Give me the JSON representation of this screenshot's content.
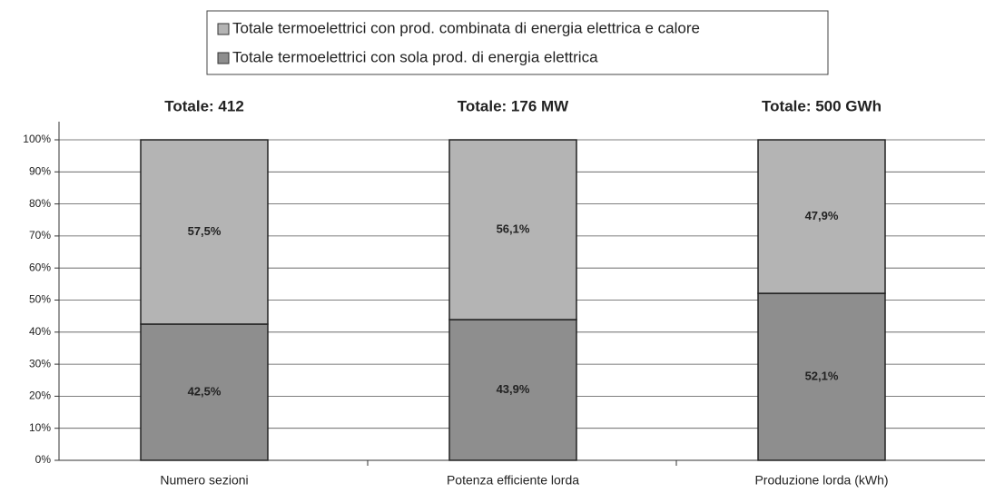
{
  "chart_data": {
    "type": "stacked_bar",
    "legend_position": "top",
    "column_titles": [
      "Totale: 412",
      "Totale: 176 MW",
      "Totale: 500 GWh"
    ],
    "categories": [
      "Numero sezioni",
      "Potenza efficiente lorda",
      "Produzione lorda (kWh)"
    ],
    "series": [
      {
        "name": "Totale termoelettrici con sola prod. di energia elettrica",
        "color": "#8e8e8e",
        "values": [
          42.5,
          43.9,
          52.1
        ],
        "value_labels": [
          "42,5%",
          "43,9%",
          "52,1%"
        ]
      },
      {
        "name": "Totale termoelettrici con prod. combinata di energia elettrica e calore",
        "color": "#b4b4b4",
        "values": [
          57.5,
          56.1,
          47.9
        ],
        "value_labels": [
          "57,5%",
          "56,1%",
          "47,9%"
        ]
      }
    ],
    "ylim": [
      0,
      100
    ],
    "yticks": [
      {
        "value": 0,
        "label": "0%"
      },
      {
        "value": 10,
        "label": "10%"
      },
      {
        "value": 20,
        "label": "20%"
      },
      {
        "value": 30,
        "label": "30%"
      },
      {
        "value": 40,
        "label": "40%"
      },
      {
        "value": 50,
        "label": "50%"
      },
      {
        "value": 60,
        "label": "60%"
      },
      {
        "value": 70,
        "label": "70%"
      },
      {
        "value": 80,
        "label": "80%"
      },
      {
        "value": 90,
        "label": "90%"
      },
      {
        "value": 100,
        "label": "100%"
      }
    ],
    "grid": true
  }
}
